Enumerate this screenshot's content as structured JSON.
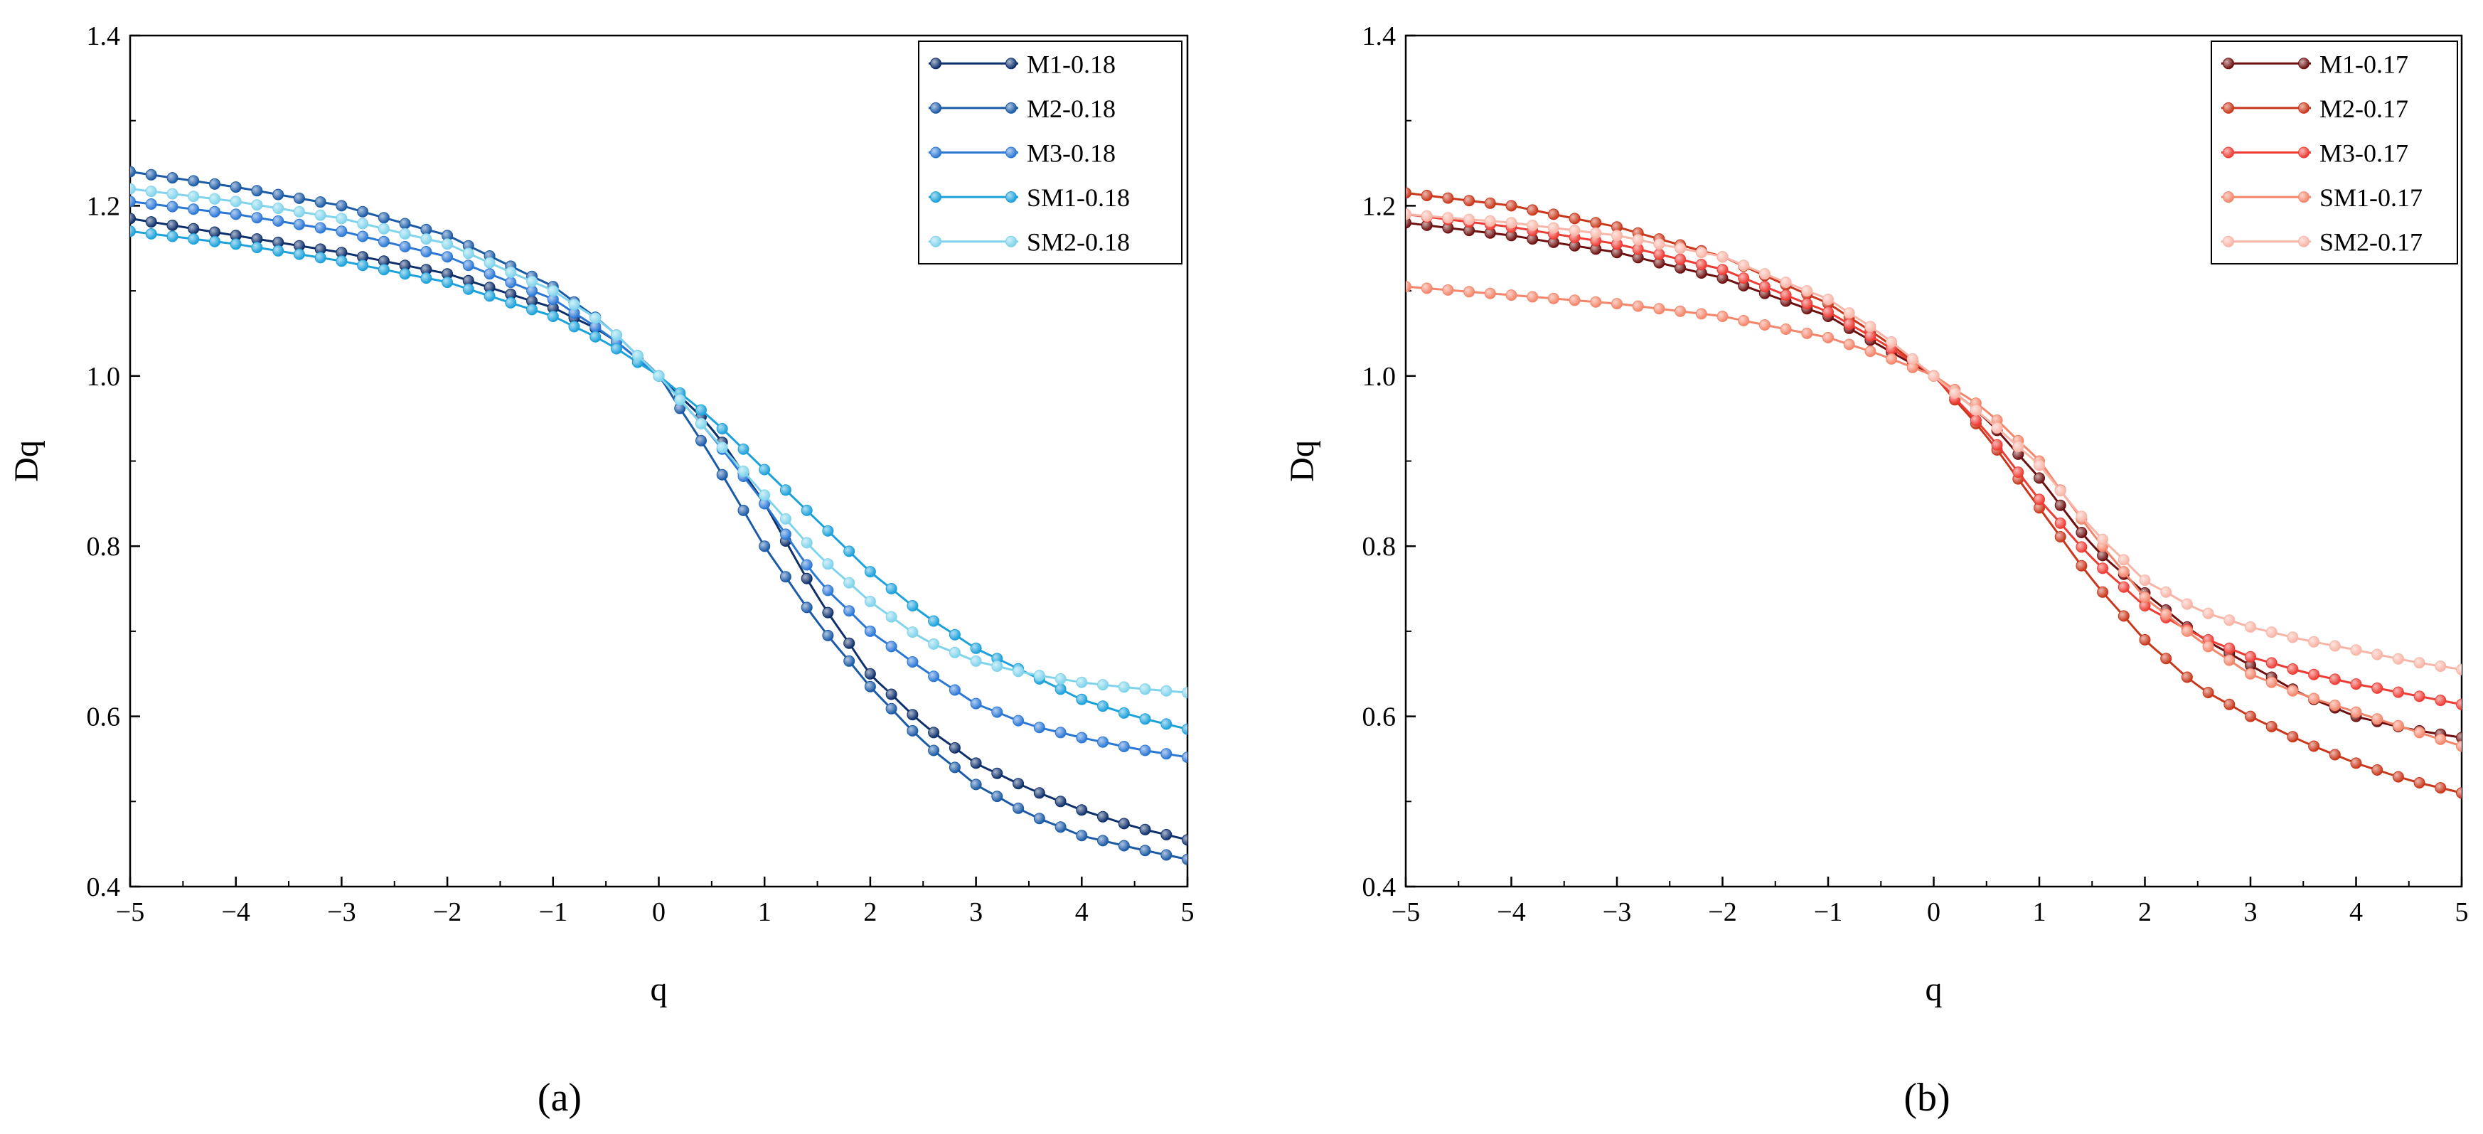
{
  "figure": {
    "captions": [
      "(a)",
      "(b)"
    ]
  },
  "chart_data": [
    {
      "type": "line",
      "panel": "a",
      "title": "",
      "xlabel": "q",
      "ylabel": "Dq",
      "xlim": [
        -5,
        5
      ],
      "ylim": [
        0.4,
        1.4
      ],
      "xticks": [
        -5,
        -4,
        -3,
        -2,
        -1,
        0,
        1,
        2,
        3,
        4,
        5
      ],
      "yticks": [
        0.4,
        0.6,
        0.8,
        1.0,
        1.2,
        1.4
      ],
      "xtick_labels": [
        "−5",
        "−4",
        "−3",
        "−2",
        "−1",
        "0",
        "1",
        "2",
        "3",
        "4",
        "5"
      ],
      "ytick_labels": [
        "0.4",
        "0.6",
        "0.8",
        "1.0",
        "1.2",
        "1.4"
      ],
      "x_sample": {
        "start": -5,
        "stop": 5,
        "step": 0.2
      },
      "legend_position": "top-right",
      "grid": false,
      "marker": "circle",
      "series": [
        {
          "name": "M1-0.18",
          "color": "#0d2f6b",
          "anchors": [
            [
              -5,
              1.185
            ],
            [
              -4,
              1.165
            ],
            [
              -3,
              1.145
            ],
            [
              -2,
              1.12
            ],
            [
              -1,
              1.08
            ],
            [
              -0.5,
              1.05
            ],
            [
              0,
              1.0
            ],
            [
              0.5,
              0.94
            ],
            [
              1,
              0.85
            ],
            [
              1.5,
              0.74
            ],
            [
              2,
              0.65
            ],
            [
              2.5,
              0.59
            ],
            [
              3,
              0.545
            ],
            [
              3.5,
              0.515
            ],
            [
              4,
              0.49
            ],
            [
              4.5,
              0.47
            ],
            [
              5,
              0.455
            ]
          ]
        },
        {
          "name": "M2-0.18",
          "color": "#1a5aa6",
          "anchors": [
            [
              -5,
              1.24
            ],
            [
              -4,
              1.222
            ],
            [
              -3,
              1.2
            ],
            [
              -2,
              1.165
            ],
            [
              -1,
              1.105
            ],
            [
              -0.5,
              1.06
            ],
            [
              0,
              1.0
            ],
            [
              0.5,
              0.905
            ],
            [
              1,
              0.8
            ],
            [
              1.5,
              0.71
            ],
            [
              2,
              0.635
            ],
            [
              2.5,
              0.57
            ],
            [
              3,
              0.52
            ],
            [
              3.5,
              0.485
            ],
            [
              4,
              0.46
            ],
            [
              4.5,
              0.445
            ],
            [
              5,
              0.432
            ]
          ]
        },
        {
          "name": "M3-0.18",
          "color": "#2a77d6",
          "anchors": [
            [
              -5,
              1.205
            ],
            [
              -4,
              1.19
            ],
            [
              -3,
              1.17
            ],
            [
              -2,
              1.14
            ],
            [
              -1,
              1.09
            ],
            [
              -0.5,
              1.05
            ],
            [
              0,
              1.0
            ],
            [
              0.5,
              0.93
            ],
            [
              1,
              0.85
            ],
            [
              1.5,
              0.76
            ],
            [
              2,
              0.7
            ],
            [
              2.5,
              0.655
            ],
            [
              3,
              0.615
            ],
            [
              3.5,
              0.59
            ],
            [
              4,
              0.575
            ],
            [
              4.5,
              0.562
            ],
            [
              5,
              0.552
            ]
          ]
        },
        {
          "name": "SM1-0.18",
          "color": "#1ba1db",
          "anchors": [
            [
              -5,
              1.17
            ],
            [
              -4,
              1.155
            ],
            [
              -3,
              1.135
            ],
            [
              -2,
              1.11
            ],
            [
              -1,
              1.07
            ],
            [
              -0.5,
              1.04
            ],
            [
              0,
              1.0
            ],
            [
              0.5,
              0.95
            ],
            [
              1,
              0.89
            ],
            [
              1.5,
              0.83
            ],
            [
              2,
              0.77
            ],
            [
              2.5,
              0.72
            ],
            [
              3,
              0.68
            ],
            [
              3.5,
              0.65
            ],
            [
              4,
              0.62
            ],
            [
              4.5,
              0.6
            ],
            [
              5,
              0.585
            ]
          ]
        },
        {
          "name": "SM2-0.18",
          "color": "#7fd3ec",
          "anchors": [
            [
              -5,
              1.22
            ],
            [
              -4,
              1.205
            ],
            [
              -3,
              1.185
            ],
            [
              -2,
              1.155
            ],
            [
              -1,
              1.1
            ],
            [
              -0.5,
              1.06
            ],
            [
              0,
              1.0
            ],
            [
              0.5,
              0.93
            ],
            [
              1,
              0.86
            ],
            [
              1.5,
              0.79
            ],
            [
              2,
              0.735
            ],
            [
              2.5,
              0.69
            ],
            [
              3,
              0.665
            ],
            [
              3.5,
              0.65
            ],
            [
              4,
              0.64
            ],
            [
              4.5,
              0.633
            ],
            [
              5,
              0.628
            ]
          ]
        }
      ]
    },
    {
      "type": "line",
      "panel": "b",
      "title": "",
      "xlabel": "q",
      "ylabel": "Dq",
      "xlim": [
        -5,
        5
      ],
      "ylim": [
        0.4,
        1.4
      ],
      "xticks": [
        -5,
        -4,
        -3,
        -2,
        -1,
        0,
        1,
        2,
        3,
        4,
        5
      ],
      "yticks": [
        0.4,
        0.6,
        0.8,
        1.0,
        1.2,
        1.4
      ],
      "xtick_labels": [
        "−5",
        "−4",
        "−3",
        "−2",
        "−1",
        "0",
        "1",
        "2",
        "3",
        "4",
        "5"
      ],
      "ytick_labels": [
        "0.4",
        "0.6",
        "0.8",
        "1.0",
        "1.2",
        "1.4"
      ],
      "x_sample": {
        "start": -5,
        "stop": 5,
        "step": 0.2
      },
      "legend_position": "top-right",
      "grid": false,
      "marker": "circle",
      "series": [
        {
          "name": "M1-0.17",
          "color": "#6e0f0f",
          "anchors": [
            [
              -5,
              1.18
            ],
            [
              -4,
              1.165
            ],
            [
              -3,
              1.145
            ],
            [
              -2,
              1.115
            ],
            [
              -1,
              1.07
            ],
            [
              -0.5,
              1.035
            ],
            [
              0,
              1.0
            ],
            [
              0.5,
              0.95
            ],
            [
              1,
              0.88
            ],
            [
              1.5,
              0.8
            ],
            [
              2,
              0.745
            ],
            [
              2.5,
              0.695
            ],
            [
              3,
              0.66
            ],
            [
              3.5,
              0.625
            ],
            [
              4,
              0.6
            ],
            [
              4.5,
              0.585
            ],
            [
              5,
              0.575
            ]
          ]
        },
        {
          "name": "M2-0.17",
          "color": "#c9361a",
          "anchors": [
            [
              -5,
              1.215
            ],
            [
              -4,
              1.2
            ],
            [
              -3,
              1.175
            ],
            [
              -2,
              1.14
            ],
            [
              -1,
              1.085
            ],
            [
              -0.5,
              1.045
            ],
            [
              0,
              1.0
            ],
            [
              0.5,
              0.93
            ],
            [
              1,
              0.845
            ],
            [
              1.5,
              0.76
            ],
            [
              2,
              0.69
            ],
            [
              2.5,
              0.635
            ],
            [
              3,
              0.6
            ],
            [
              3.5,
              0.57
            ],
            [
              4,
              0.545
            ],
            [
              4.5,
              0.525
            ],
            [
              5,
              0.51
            ]
          ]
        },
        {
          "name": "M3-0.17",
          "color": "#ee3b33",
          "anchors": [
            [
              -5,
              1.19
            ],
            [
              -4,
              1.175
            ],
            [
              -3,
              1.155
            ],
            [
              -2,
              1.125
            ],
            [
              -1,
              1.075
            ],
            [
              -0.5,
              1.04
            ],
            [
              0,
              1.0
            ],
            [
              0.5,
              0.935
            ],
            [
              1,
              0.855
            ],
            [
              1.5,
              0.785
            ],
            [
              2,
              0.73
            ],
            [
              2.5,
              0.695
            ],
            [
              3,
              0.67
            ],
            [
              3.5,
              0.652
            ],
            [
              4,
              0.638
            ],
            [
              4.5,
              0.626
            ],
            [
              5,
              0.614
            ]
          ]
        },
        {
          "name": "SM1-0.17",
          "color": "#f4856a",
          "anchors": [
            [
              -5,
              1.105
            ],
            [
              -4,
              1.095
            ],
            [
              -3,
              1.085
            ],
            [
              -2,
              1.07
            ],
            [
              -1,
              1.045
            ],
            [
              -0.5,
              1.025
            ],
            [
              0,
              1.0
            ],
            [
              0.5,
              0.96
            ],
            [
              1,
              0.9
            ],
            [
              1.5,
              0.815
            ],
            [
              2,
              0.74
            ],
            [
              2.5,
              0.69
            ],
            [
              3,
              0.65
            ],
            [
              3.5,
              0.625
            ],
            [
              4,
              0.605
            ],
            [
              4.5,
              0.585
            ],
            [
              5,
              0.565
            ]
          ]
        },
        {
          "name": "SM2-0.17",
          "color": "#f8b4a6",
          "anchors": [
            [
              -5,
              1.19
            ],
            [
              -4,
              1.18
            ],
            [
              -3,
              1.165
            ],
            [
              -2,
              1.14
            ],
            [
              -1,
              1.09
            ],
            [
              -0.5,
              1.05
            ],
            [
              0,
              1.0
            ],
            [
              0.5,
              0.95
            ],
            [
              1,
              0.895
            ],
            [
              1.5,
              0.82
            ],
            [
              2,
              0.76
            ],
            [
              2.5,
              0.725
            ],
            [
              3,
              0.705
            ],
            [
              3.5,
              0.69
            ],
            [
              4,
              0.678
            ],
            [
              4.5,
              0.665
            ],
            [
              5,
              0.655
            ]
          ]
        }
      ]
    }
  ]
}
